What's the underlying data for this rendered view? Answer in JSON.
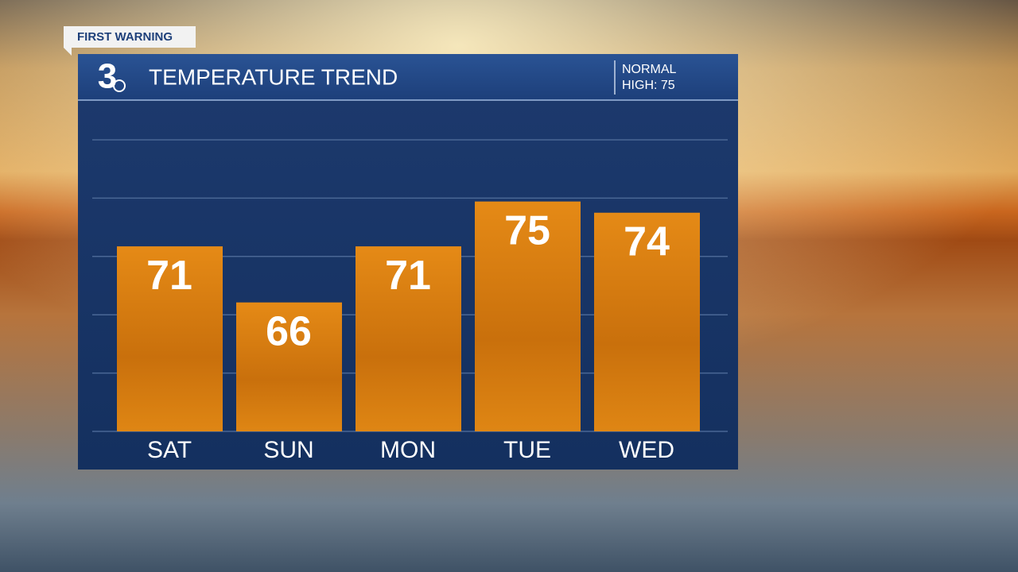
{
  "chart_data": {
    "type": "bar",
    "badge": "FIRST WARNING",
    "logo": "3",
    "title": "TEMPERATURE TREND",
    "note": [
      "NORMAL",
      "HIGH: 75"
    ],
    "categories": [
      "SAT",
      "SUN",
      "MON",
      "TUE",
      "WED"
    ],
    "values": [
      71,
      66,
      71,
      75,
      74
    ],
    "color": "#d97d12",
    "ylim": [
      54.5,
      80.5
    ],
    "grid": true
  }
}
